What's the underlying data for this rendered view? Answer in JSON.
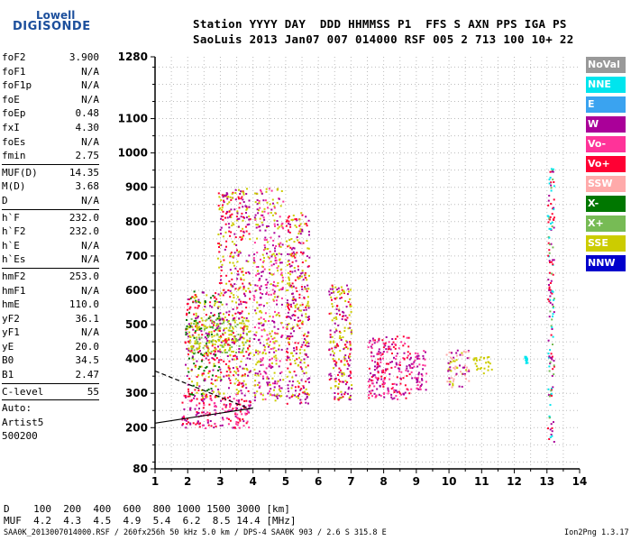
{
  "logo": {
    "line1": "Lowell",
    "line2": "DIGISONDE"
  },
  "header": {
    "line1": "Station YYYY DAY  DDD HHMMSS P1  FFS S AXN PPS IGA PS",
    "line2": "SaoLuis 2013 Jan07 007 014000 RSF 005 2 713 100 10+ 22"
  },
  "params": [
    {
      "group": [
        {
          "name": "foF2",
          "value": "3.900"
        },
        {
          "name": "foF1",
          "value": "N/A"
        },
        {
          "name": "foF1p",
          "value": "N/A"
        },
        {
          "name": "foE",
          "value": "N/A"
        },
        {
          "name": "foEp",
          "value": "0.48"
        },
        {
          "name": "fxI",
          "value": "4.30"
        },
        {
          "name": "foEs",
          "value": "N/A"
        },
        {
          "name": "fmin",
          "value": "2.75"
        }
      ]
    },
    {
      "group": [
        {
          "name": "MUF(D)",
          "value": "14.35"
        },
        {
          "name": "M(D)",
          "value": "3.68"
        },
        {
          "name": "D",
          "value": "N/A"
        }
      ]
    },
    {
      "group": [
        {
          "name": "h`F",
          "value": "232.0"
        },
        {
          "name": "h`F2",
          "value": "232.0"
        },
        {
          "name": "h`E",
          "value": "N/A"
        },
        {
          "name": "h`Es",
          "value": "N/A"
        }
      ]
    },
    {
      "group": [
        {
          "name": "hmF2",
          "value": "253.0"
        },
        {
          "name": "hmF1",
          "value": "N/A"
        },
        {
          "name": "hmE",
          "value": "110.0"
        },
        {
          "name": "yF2",
          "value": "36.1"
        },
        {
          "name": "yF1",
          "value": "N/A"
        },
        {
          "name": "yE",
          "value": "20.0"
        },
        {
          "name": "B0",
          "value": "34.5"
        },
        {
          "name": "B1",
          "value": "2.47"
        }
      ]
    },
    {
      "group": [
        {
          "name": "C-level",
          "value": "55"
        }
      ]
    },
    {
      "group": [
        {
          "name": "Auto:",
          "value": ""
        },
        {
          "name": "Artist5",
          "value": ""
        },
        {
          "name": "500200",
          "value": ""
        }
      ]
    }
  ],
  "legend": [
    {
      "label": "NoVal",
      "color": "#999999"
    },
    {
      "label": "NNE",
      "color": "#00e5ee"
    },
    {
      "label": "E",
      "color": "#3aa3f0"
    },
    {
      "label": "W",
      "color": "#aa0099"
    },
    {
      "label": "Vo-",
      "color": "#ff3399"
    },
    {
      "label": "Vo+",
      "color": "#ff0033"
    },
    {
      "label": "SSW",
      "color": "#ffaaaa"
    },
    {
      "label": "X-",
      "color": "#007700"
    },
    {
      "label": "X+",
      "color": "#77bb55"
    },
    {
      "label": "SSE",
      "color": "#cccc00"
    },
    {
      "label": "NNW",
      "color": "#0000cc"
    }
  ],
  "dmuf": {
    "d_line": "D    100  200  400  600  800 1000 1500 3000 [km]",
    "muf_line": "MUF  4.2  4.3  4.5  4.9  5.4  6.2  8.5 14.4 [MHz]"
  },
  "footer": "SAA0K_2013007014000.RSF / 260fx256h 50 kHz 5.0 km / DPS-4 SAA0K 903 / 2.6 S 315.8 E",
  "version": "Ion2Png 1.3.17",
  "chart_data": {
    "type": "scatter",
    "title": "",
    "xlabel": "",
    "ylabel": "",
    "xlim": [
      1,
      14
    ],
    "ylim": [
      80,
      1280
    ],
    "x_ticks": [
      1,
      2,
      3,
      4,
      5,
      6,
      7,
      8,
      9,
      10,
      11,
      12,
      13,
      14
    ],
    "y_ticks": [
      80,
      200,
      300,
      400,
      500,
      600,
      700,
      800,
      900,
      1000,
      1100,
      1280
    ],
    "grid": true,
    "legend_position": "right",
    "clusters": [
      {
        "x": [
          1.8,
          3.9
        ],
        "y": [
          200,
          300
        ],
        "colors": [
          "#ff0033",
          "#ff3399",
          "#aa0099"
        ]
      },
      {
        "x": [
          1.9,
          3.0
        ],
        "y": [
          290,
          600
        ],
        "colors": [
          "#ff0033",
          "#aa0099",
          "#cccc00",
          "#007700"
        ]
      },
      {
        "x": [
          2.0,
          3.9
        ],
        "y": [
          420,
          520
        ],
        "colors": [
          "#cccc00",
          "#77bb55"
        ]
      },
      {
        "x": [
          2.9,
          3.9
        ],
        "y": [
          300,
          900
        ],
        "colors": [
          "#cccc00",
          "#aa0099",
          "#ff0033"
        ]
      },
      {
        "x": [
          4.0,
          4.9
        ],
        "y": [
          280,
          900
        ],
        "colors": [
          "#cccc00",
          "#aa0099",
          "#ff3399"
        ]
      },
      {
        "x": [
          5.0,
          5.7
        ],
        "y": [
          270,
          830
        ],
        "colors": [
          "#cccc00",
          "#ff0033",
          "#aa0099"
        ]
      },
      {
        "x": [
          6.3,
          7.0
        ],
        "y": [
          280,
          620
        ],
        "colors": [
          "#aa0099",
          "#ff0033",
          "#cccc00"
        ]
      },
      {
        "x": [
          7.5,
          8.8
        ],
        "y": [
          285,
          470
        ],
        "colors": [
          "#aa0099",
          "#ff3399",
          "#ff0033"
        ]
      },
      {
        "x": [
          8.8,
          9.3
        ],
        "y": [
          310,
          430
        ],
        "colors": [
          "#aa0099",
          "#ff3399"
        ]
      },
      {
        "x": [
          9.9,
          10.6
        ],
        "y": [
          320,
          430
        ],
        "colors": [
          "#aa0099",
          "#ffaaaa",
          "#cccc00"
        ]
      },
      {
        "x": [
          10.7,
          11.3
        ],
        "y": [
          360,
          410
        ],
        "colors": [
          "#cccc00"
        ]
      },
      {
        "x": [
          12.3,
          12.4
        ],
        "y": [
          390,
          410
        ],
        "colors": [
          "#00e5ee"
        ]
      },
      {
        "x": [
          13.0,
          13.2
        ],
        "y": [
          160,
          960
        ],
        "colors": [
          "#77bb55",
          "#aa0099",
          "#00e5ee",
          "#ff0033"
        ]
      }
    ],
    "traces": [
      {
        "name": "solid",
        "style": "solid",
        "points": [
          [
            1,
            213
          ],
          [
            4.0,
            257
          ]
        ]
      },
      {
        "name": "dashed",
        "style": "dashed",
        "points": [
          [
            1,
            365
          ],
          [
            3.9,
            255
          ]
        ]
      }
    ]
  }
}
